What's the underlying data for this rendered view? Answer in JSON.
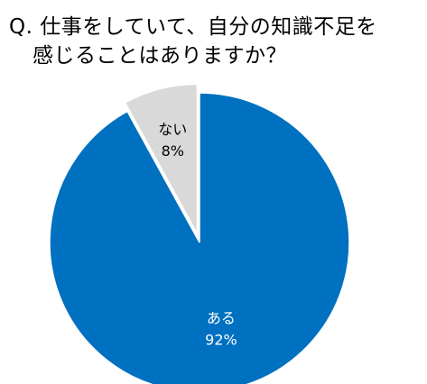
{
  "title": {
    "line1": "Q. 仕事をしていて、自分の知識不足を",
    "line2": "感じることはありますか？"
  },
  "chart_data": {
    "type": "pie",
    "title": "Q. 仕事をしていて、自分の知識不足を感じることはありますか？",
    "start_angle_deg": 0,
    "direction": "clockwise",
    "slices": [
      {
        "label": "ある",
        "value": 92,
        "value_label": "92%",
        "color": "#0070c0",
        "text_color": "#ffffff",
        "exploded": false
      },
      {
        "label": "ない",
        "value": 8,
        "value_label": "8%",
        "color": "#d9d9d9",
        "text_color": "#000000",
        "exploded": true
      }
    ]
  }
}
